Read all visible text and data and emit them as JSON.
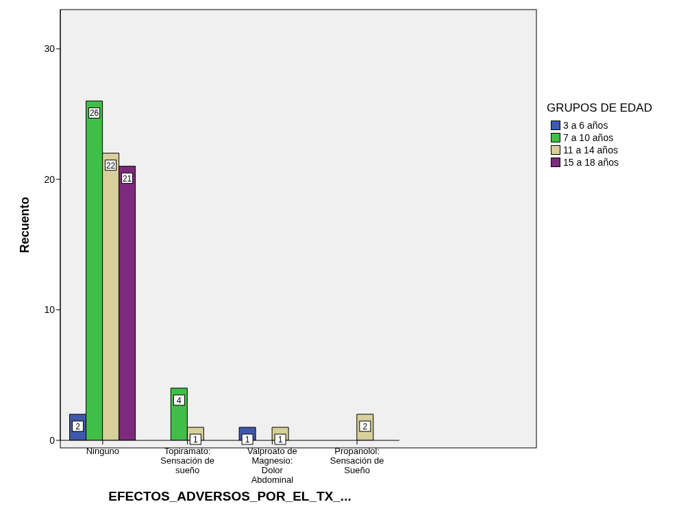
{
  "chart_data": {
    "type": "bar",
    "xlabel": "EFECTOS_ADVERSOS_POR_EL_TX_...",
    "ylabel": "Recuento",
    "legend_title": "GRUPOS DE EDAD",
    "categories": [
      "Ninguno",
      "Topiramato: Sensación de sueño",
      "Valproato de Magnesio: Dolor Abdominal",
      "Propanolol: Sensación de Sueño"
    ],
    "series": [
      {
        "name": "3 a 6 años",
        "color": "#3e58ac",
        "values": [
          2,
          null,
          1,
          null
        ]
      },
      {
        "name": "7 a 10 años",
        "color": "#3fbf48",
        "values": [
          26,
          4,
          null,
          null
        ]
      },
      {
        "name": "11 a 14 años",
        "color": "#d8cf9a",
        "values": [
          22,
          1,
          1,
          2
        ]
      },
      {
        "name": "15 a 18 años",
        "color": "#7c2a7c",
        "values": [
          21,
          null,
          null,
          null
        ]
      }
    ],
    "ylim": [
      0,
      33
    ],
    "yticks": [
      0,
      10,
      20,
      30
    ],
    "grid": false,
    "legend": "right",
    "data_labels": true
  }
}
